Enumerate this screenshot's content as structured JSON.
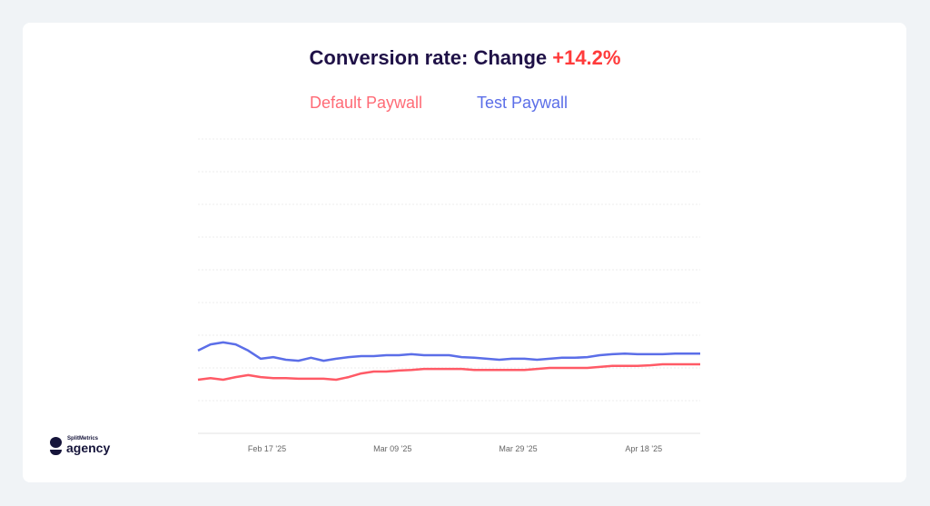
{
  "title": {
    "prefix": "Conversion rate: Change ",
    "change": "+14.2%",
    "change_color": "#ff3b3b"
  },
  "logo": {
    "small": "SplitMetrics",
    "big": "agency"
  },
  "chart_data": {
    "type": "line",
    "title": "Conversion rate: Change +14.2%",
    "xlabel": "",
    "ylabel": "",
    "legend_position": "top",
    "grid": true,
    "ylim": [
      0,
      9
    ],
    "xlim": [
      "2025-02-06",
      "2025-04-27"
    ],
    "x_ticks": [
      {
        "date": "2025-02-17",
        "label": "Feb 17 '25"
      },
      {
        "date": "2025-03-09",
        "label": "Mar 09 '25"
      },
      {
        "date": "2025-03-29",
        "label": "Mar 29 '25"
      },
      {
        "date": "2025-04-18",
        "label": "Apr 18 '25"
      }
    ],
    "x": [
      "2025-02-06",
      "2025-02-08",
      "2025-02-10",
      "2025-02-12",
      "2025-02-14",
      "2025-02-16",
      "2025-02-18",
      "2025-02-20",
      "2025-02-22",
      "2025-02-24",
      "2025-02-26",
      "2025-02-28",
      "2025-03-02",
      "2025-03-04",
      "2025-03-06",
      "2025-03-08",
      "2025-03-10",
      "2025-03-12",
      "2025-03-14",
      "2025-03-16",
      "2025-03-18",
      "2025-03-20",
      "2025-03-22",
      "2025-03-24",
      "2025-03-26",
      "2025-03-28",
      "2025-03-30",
      "2025-04-01",
      "2025-04-03",
      "2025-04-05",
      "2025-04-07",
      "2025-04-09",
      "2025-04-11",
      "2025-04-13",
      "2025-04-15",
      "2025-04-17",
      "2025-04-19",
      "2025-04-21",
      "2025-04-23",
      "2025-04-25",
      "2025-04-27"
    ],
    "series": [
      {
        "name": "Default Paywall",
        "color": "#ff5a66",
        "values": [
          1.64,
          1.69,
          1.64,
          1.72,
          1.78,
          1.72,
          1.69,
          1.69,
          1.67,
          1.67,
          1.67,
          1.64,
          1.72,
          1.83,
          1.89,
          1.89,
          1.92,
          1.94,
          1.97,
          1.97,
          1.97,
          1.97,
          1.94,
          1.94,
          1.94,
          1.94,
          1.94,
          1.97,
          2.0,
          2.0,
          2.0,
          2.0,
          2.03,
          2.06,
          2.06,
          2.06,
          2.08,
          2.11,
          2.11,
          2.11,
          2.11
        ]
      },
      {
        "name": "Test Paywall",
        "color": "#5b6ee8",
        "values": [
          2.53,
          2.72,
          2.78,
          2.72,
          2.53,
          2.28,
          2.33,
          2.25,
          2.22,
          2.31,
          2.22,
          2.28,
          2.33,
          2.36,
          2.36,
          2.39,
          2.39,
          2.42,
          2.39,
          2.39,
          2.39,
          2.33,
          2.31,
          2.28,
          2.25,
          2.28,
          2.28,
          2.25,
          2.28,
          2.31,
          2.31,
          2.33,
          2.39,
          2.42,
          2.44,
          2.42,
          2.42,
          2.42,
          2.44,
          2.44,
          2.44
        ]
      }
    ]
  }
}
